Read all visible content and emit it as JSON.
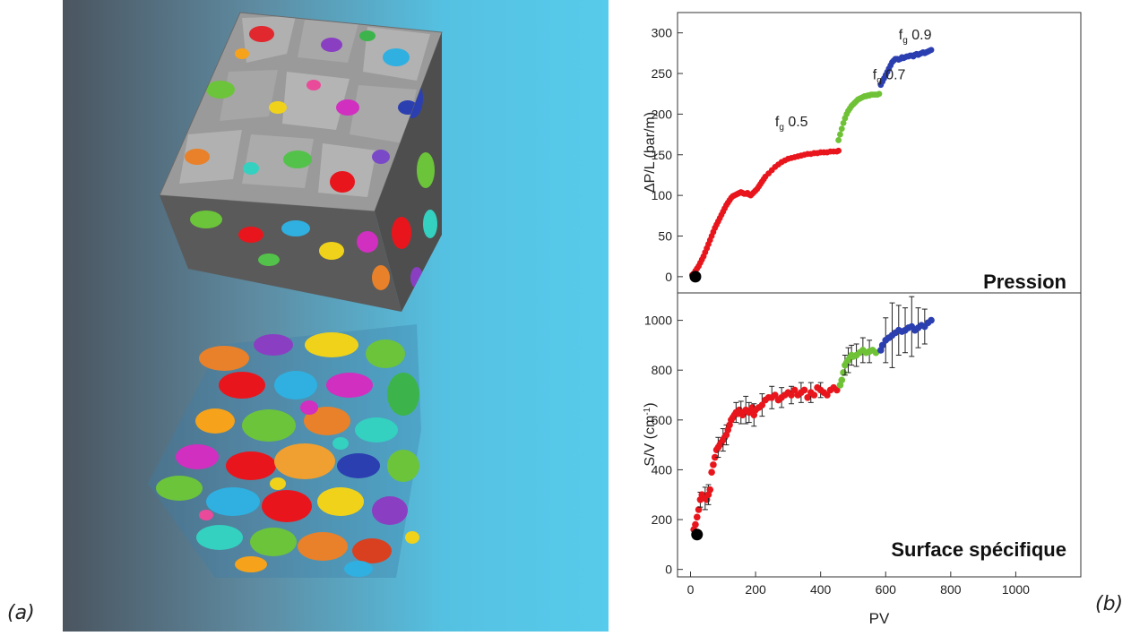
{
  "panel_labels": {
    "a": "(a)",
    "b": "(b)"
  },
  "colors": {
    "red": "#e8161c",
    "green": "#6fc236",
    "blue": "#2b3fb0",
    "black": "#000000",
    "grain_gray": "#a4a4a4",
    "background_left": "#4b5560",
    "background_right": "#55c8e8"
  },
  "chart_data": [
    {
      "type": "scatter",
      "title": "",
      "panel_label": "Pression",
      "xlabel": "",
      "ylabel": "ΔP/L (bar/m)",
      "xlim": [
        -40,
        1200
      ],
      "ylim": [
        -20,
        325
      ],
      "yticks": [
        0,
        50,
        100,
        150,
        200,
        250,
        300
      ],
      "annotations": [
        {
          "prefix": "f",
          "sub": "g",
          "value": " 0.5",
          "x": 260,
          "y": 185
        },
        {
          "prefix": "f",
          "sub": "g",
          "value": " 0.7",
          "x": 560,
          "y": 243
        },
        {
          "prefix": "f",
          "sub": "g",
          "value": " 0.9",
          "x": 640,
          "y": 292
        }
      ],
      "series": [
        {
          "name": "",
          "color": "#e8161c",
          "x": [
            5,
            10,
            15,
            20,
            25,
            30,
            35,
            40,
            45,
            50,
            55,
            60,
            65,
            70,
            75,
            80,
            85,
            90,
            95,
            100,
            105,
            110,
            115,
            120,
            125,
            130,
            135,
            140,
            145,
            150,
            155,
            160,
            165,
            170,
            175,
            180,
            185,
            190,
            195,
            200,
            205,
            210,
            215,
            220,
            225,
            230,
            240,
            250,
            260,
            270,
            280,
            290,
            300,
            310,
            320,
            330,
            340,
            350,
            360,
            370,
            380,
            390,
            400,
            410,
            420,
            430,
            440,
            450,
            455
          ],
          "y": [
            2,
            4,
            7,
            10,
            13,
            17,
            21,
            25,
            30,
            35,
            40,
            45,
            50,
            55,
            60,
            64,
            68,
            72,
            76,
            80,
            84,
            88,
            91,
            94,
            97,
            99,
            100,
            101,
            102,
            103,
            104,
            103,
            102,
            102,
            103,
            101,
            100,
            102,
            104,
            106,
            108,
            111,
            114,
            117,
            120,
            123,
            127,
            131,
            135,
            138,
            141,
            143,
            145,
            146,
            147,
            148,
            149,
            150,
            151,
            151,
            152,
            152,
            153,
            153,
            153,
            154,
            154,
            154,
            155
          ]
        },
        {
          "name": "",
          "color": "#6fc236",
          "x": [
            455,
            460,
            465,
            470,
            475,
            480,
            485,
            490,
            495,
            500,
            505,
            510,
            515,
            520,
            525,
            530,
            535,
            540,
            545,
            550,
            555,
            560,
            565,
            570,
            575,
            580
          ],
          "y": [
            168,
            175,
            182,
            189,
            195,
            200,
            204,
            207,
            210,
            212,
            214,
            216,
            218,
            219,
            220,
            221,
            222,
            222,
            223,
            223,
            224,
            224,
            224,
            224,
            224,
            225
          ]
        },
        {
          "name": "",
          "color": "#2b3fb0",
          "x": [
            585,
            590,
            595,
            600,
            605,
            610,
            615,
            620,
            625,
            630,
            635,
            640,
            645,
            650,
            655,
            660,
            665,
            670,
            675,
            680,
            685,
            690,
            695,
            700,
            705,
            710,
            715,
            720,
            725,
            730,
            735,
            740
          ],
          "y": [
            236,
            240,
            244,
            248,
            252,
            256,
            260,
            264,
            266,
            268,
            268,
            267,
            268,
            270,
            269,
            270,
            271,
            271,
            272,
            272,
            271,
            273,
            274,
            273,
            274,
            275,
            276,
            275,
            276,
            277,
            278,
            279
          ]
        },
        {
          "name": "",
          "color": "#000000",
          "marker_size": "large",
          "x": [
            15
          ],
          "y": [
            0
          ]
        }
      ]
    },
    {
      "type": "scatter",
      "title": "",
      "panel_label": "Surface spécifique",
      "xlabel": "PV",
      "ylabel_parts": [
        "S/V (cm",
        "-1",
        ")"
      ],
      "xlim": [
        -40,
        1200
      ],
      "ylim": [
        -30,
        1110
      ],
      "xticks": [
        0,
        200,
        400,
        600,
        800,
        1000
      ],
      "yticks": [
        0,
        200,
        400,
        600,
        800,
        1000
      ],
      "series": [
        {
          "name": "",
          "color": "#e8161c",
          "x": [
            10,
            15,
            20,
            25,
            30,
            35,
            40,
            45,
            50,
            55,
            60,
            65,
            70,
            75,
            80,
            85,
            90,
            95,
            100,
            105,
            110,
            115,
            120,
            125,
            130,
            135,
            140,
            145,
            150,
            155,
            160,
            165,
            170,
            175,
            180,
            185,
            190,
            195,
            200,
            210,
            220,
            230,
            240,
            250,
            260,
            270,
            280,
            290,
            300,
            310,
            320,
            330,
            340,
            350,
            360,
            370,
            380,
            390,
            400,
            410,
            420,
            430,
            440,
            450
          ],
          "y": [
            160,
            180,
            210,
            240,
            280,
            300,
            290,
            285,
            280,
            300,
            320,
            390,
            420,
            450,
            480,
            490,
            500,
            510,
            520,
            530,
            540,
            560,
            580,
            600,
            610,
            620,
            630,
            625,
            640,
            630,
            620,
            630,
            640,
            635,
            630,
            640,
            650,
            620,
            640,
            650,
            660,
            680,
            690,
            690,
            700,
            680,
            690,
            700,
            710,
            700,
            720,
            700,
            710,
            720,
            690,
            710,
            700,
            730,
            720,
            710,
            700,
            720,
            730,
            720
          ],
          "errors": [
            0,
            0,
            0,
            0,
            30,
            0,
            0,
            45,
            0,
            40,
            0,
            0,
            0,
            0,
            0,
            40,
            0,
            0,
            45,
            0,
            40,
            0,
            0,
            0,
            0,
            0,
            40,
            0,
            0,
            45,
            0,
            0,
            55,
            0,
            40,
            0,
            0,
            45,
            0,
            0,
            45,
            0,
            0,
            45,
            0,
            0,
            40,
            0,
            0,
            35,
            0,
            0,
            40,
            0,
            0,
            40,
            0,
            0,
            30,
            0,
            0,
            0,
            0,
            0
          ]
        },
        {
          "name": "",
          "color": "#6fc236",
          "x": [
            460,
            465,
            470,
            475,
            480,
            485,
            490,
            495,
            500,
            510,
            520,
            530,
            540,
            550,
            560,
            570
          ],
          "y": [
            740,
            760,
            790,
            820,
            830,
            840,
            850,
            860,
            855,
            860,
            870,
            880,
            870,
            875,
            880,
            870
          ],
          "errors": [
            0,
            0,
            0,
            40,
            0,
            50,
            0,
            40,
            0,
            45,
            0,
            50,
            0,
            45,
            0,
            0
          ]
        },
        {
          "name": "",
          "color": "#2b3fb0",
          "x": [
            585,
            590,
            600,
            610,
            620,
            630,
            640,
            650,
            660,
            670,
            680,
            690,
            700,
            710,
            720,
            730,
            740
          ],
          "y": [
            880,
            900,
            920,
            930,
            940,
            950,
            960,
            955,
            960,
            970,
            975,
            960,
            970,
            980,
            975,
            990,
            1000
          ],
          "errors": [
            0,
            0,
            90,
            0,
            130,
            0,
            100,
            0,
            90,
            0,
            120,
            0,
            80,
            0,
            70,
            0,
            0
          ]
        },
        {
          "name": "",
          "color": "#000000",
          "marker_size": "large",
          "x": [
            20
          ],
          "y": [
            140
          ]
        }
      ]
    }
  ]
}
